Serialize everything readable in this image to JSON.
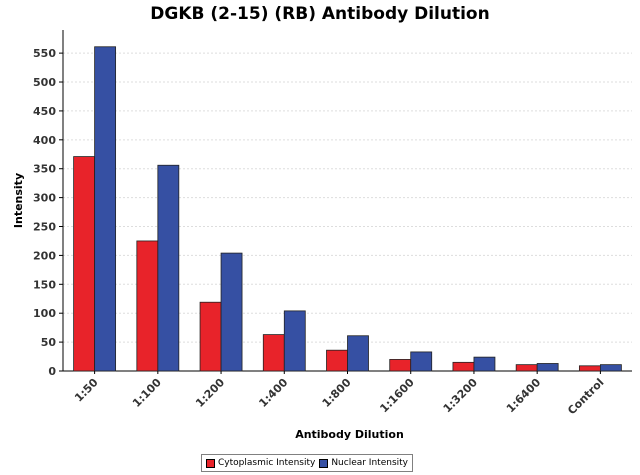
{
  "chart_data": {
    "type": "bar",
    "title": "DGKB (2-15) (RB) Antibody Dilution",
    "xlabel": "Antibody Dilution",
    "ylabel": "Intensity",
    "categories": [
      "1:50",
      "1:100",
      "1:200",
      "1:400",
      "1:800",
      "1:1600",
      "1:3200",
      "1:6400",
      "Control"
    ],
    "series": [
      {
        "name": "Cytoplasmic Intensity",
        "color": "#e8232a",
        "values": [
          371,
          225,
          119,
          63,
          36,
          20,
          15,
          11,
          9
        ]
      },
      {
        "name": "Nuclear Intensity",
        "color": "#3650a3",
        "values": [
          561,
          356,
          204,
          104,
          61,
          33,
          24,
          13,
          11
        ]
      }
    ],
    "yticks": [
      0,
      50,
      100,
      150,
      200,
      250,
      300,
      350,
      400,
      450,
      500,
      550
    ],
    "ylim": [
      0,
      590
    ],
    "grid": true,
    "legend": "bottom"
  }
}
